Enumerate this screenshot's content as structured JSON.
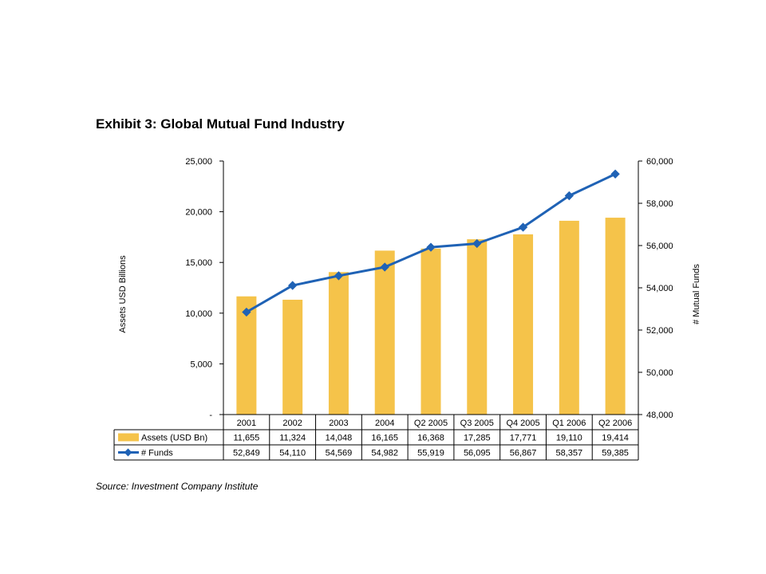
{
  "title": "Exhibit 3: Global Mutual Fund Industry",
  "source": "Source: Investment Company Institute",
  "colors": {
    "bar": "#F5C34A",
    "line": "#1F62B5",
    "axis": "#000000"
  },
  "chart_data": {
    "type": "bar+line",
    "categories": [
      "2001",
      "2002",
      "2003",
      "2004",
      "Q2 2005",
      "Q3 2005",
      "Q4 2005",
      "Q1 2006",
      "Q2 2006"
    ],
    "series": [
      {
        "name": "Assets (USD Bn)",
        "type": "bar",
        "axis": "left",
        "values": [
          11655,
          11324,
          14048,
          16165,
          16368,
          17285,
          17771,
          19110,
          19414
        ],
        "labels": [
          "11,655",
          "11,324",
          "14,048",
          "16,165",
          "16,368",
          "17,285",
          "17,771",
          "19,110",
          "19,414"
        ]
      },
      {
        "name": "# Funds",
        "type": "line",
        "axis": "right",
        "values": [
          52849,
          54110,
          54569,
          54982,
          55919,
          56095,
          56867,
          58357,
          59385
        ],
        "labels": [
          "52,849",
          "54,110",
          "54,569",
          "54,982",
          "55,919",
          "56,095",
          "56,867",
          "58,357",
          "59,385"
        ]
      }
    ],
    "ylabel_left": "Assets USD Billions",
    "ylabel_right": "# Mutual Funds",
    "ylim_left": [
      0,
      25000
    ],
    "ylim_right": [
      48000,
      60000
    ],
    "yticks_left": [
      "-",
      "5,000",
      "10,000",
      "15,000",
      "20,000",
      "25,000"
    ],
    "yticks_right": [
      "48,000",
      "50,000",
      "52,000",
      "54,000",
      "56,000",
      "58,000",
      "60,000"
    ],
    "grid": false,
    "legend": "data-table"
  }
}
